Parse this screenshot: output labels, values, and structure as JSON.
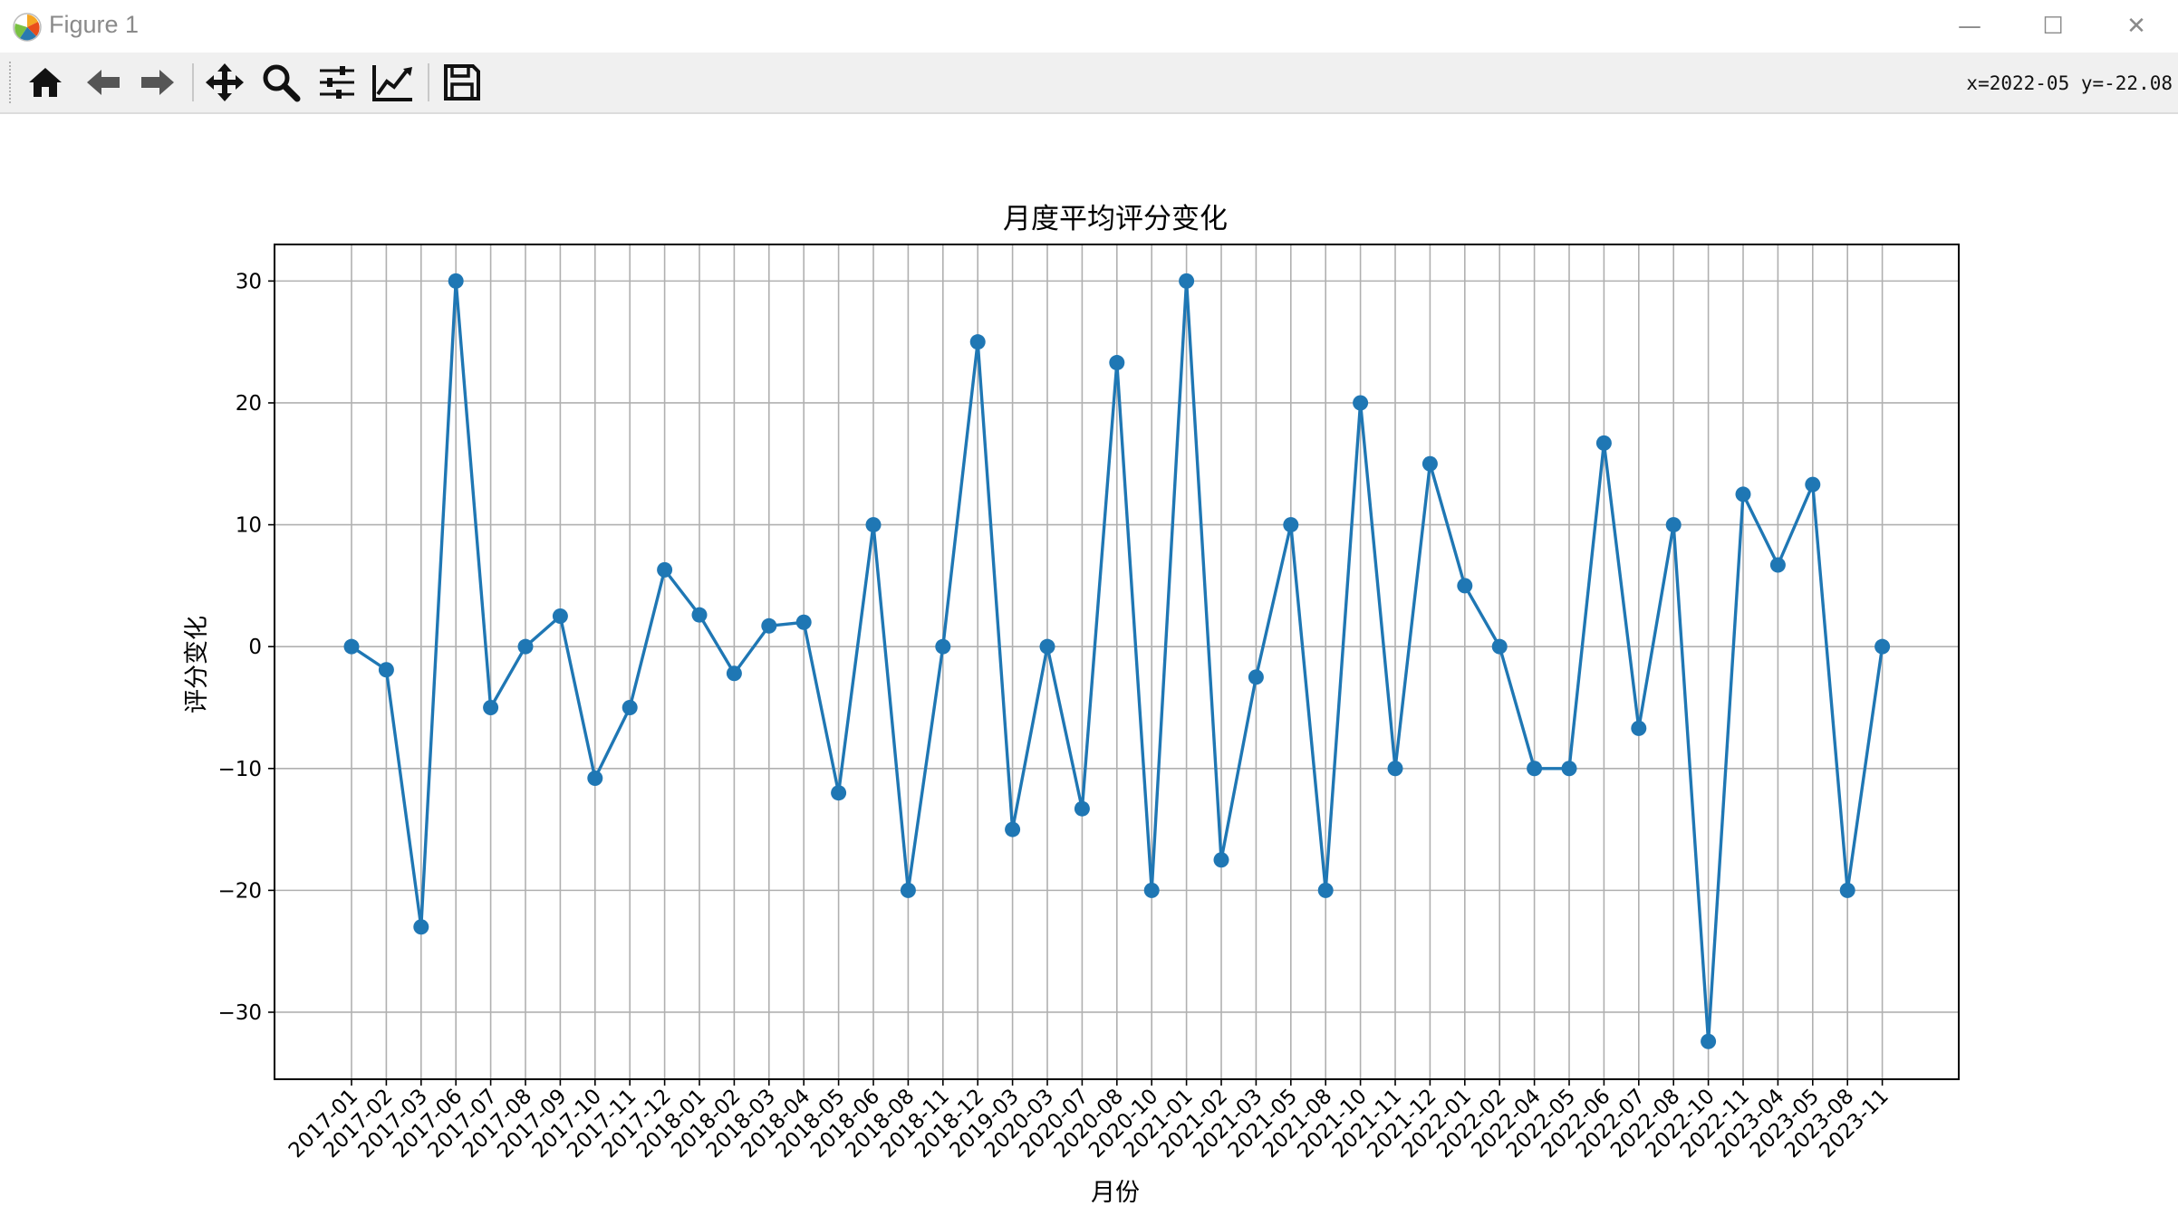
{
  "window": {
    "title": "Figure 1",
    "minimize_label": "—",
    "maximize_label": "☐",
    "close_label": "✕"
  },
  "toolbar": {
    "buttons": [
      {
        "name": "home-icon"
      },
      {
        "name": "back-arrow-icon"
      },
      {
        "name": "forward-arrow-icon"
      },
      {
        "name": "pan-icon"
      },
      {
        "name": "zoom-icon"
      },
      {
        "name": "configure-subplots-icon"
      },
      {
        "name": "edit-axis-icon"
      },
      {
        "name": "save-icon"
      }
    ],
    "coords": "x=2022-05 y=-22.08"
  },
  "colors": {
    "line": "#1f77b4",
    "grid": "#b0b0b0",
    "axes": "#000000"
  },
  "chart_data": {
    "type": "line",
    "title": "月度平均评分变化",
    "xlabel": "月份",
    "ylabel": "评分变化",
    "ylim": [
      -35.5,
      33
    ],
    "yticks": [
      -30,
      -20,
      -10,
      0,
      10,
      20,
      30
    ],
    "grid": true,
    "categories": [
      "2017-01",
      "2017-02",
      "2017-03",
      "2017-06",
      "2017-07",
      "2017-08",
      "2017-09",
      "2017-10",
      "2017-11",
      "2017-12",
      "2018-01",
      "2018-02",
      "2018-03",
      "2018-04",
      "2018-05",
      "2018-06",
      "2018-08",
      "2018-11",
      "2018-12",
      "2019-03",
      "2020-03",
      "2020-07",
      "2020-08",
      "2020-10",
      "2021-01",
      "2021-02",
      "2021-03",
      "2021-05",
      "2021-08",
      "2021-10",
      "2021-11",
      "2021-12",
      "2022-01",
      "2022-02",
      "2022-04",
      "2022-05",
      "2022-06",
      "2022-07",
      "2022-08",
      "2022-10",
      "2022-11",
      "2023-04",
      "2023-05",
      "2023-08",
      "2023-11"
    ],
    "values": [
      0,
      -1.9,
      -23,
      30,
      -5,
      0,
      2.5,
      -10.8,
      -5,
      6.3,
      2.6,
      -2.2,
      1.7,
      2,
      -12,
      10,
      -20,
      0,
      25,
      -15,
      0,
      -13.3,
      23.3,
      -20,
      30,
      -17.5,
      -2.5,
      10,
      -20,
      20,
      -10,
      15,
      5,
      0,
      -10,
      -10,
      16.7,
      -6.7,
      10,
      -32.4,
      12.5,
      6.7,
      13.3,
      -20,
      0
    ]
  }
}
